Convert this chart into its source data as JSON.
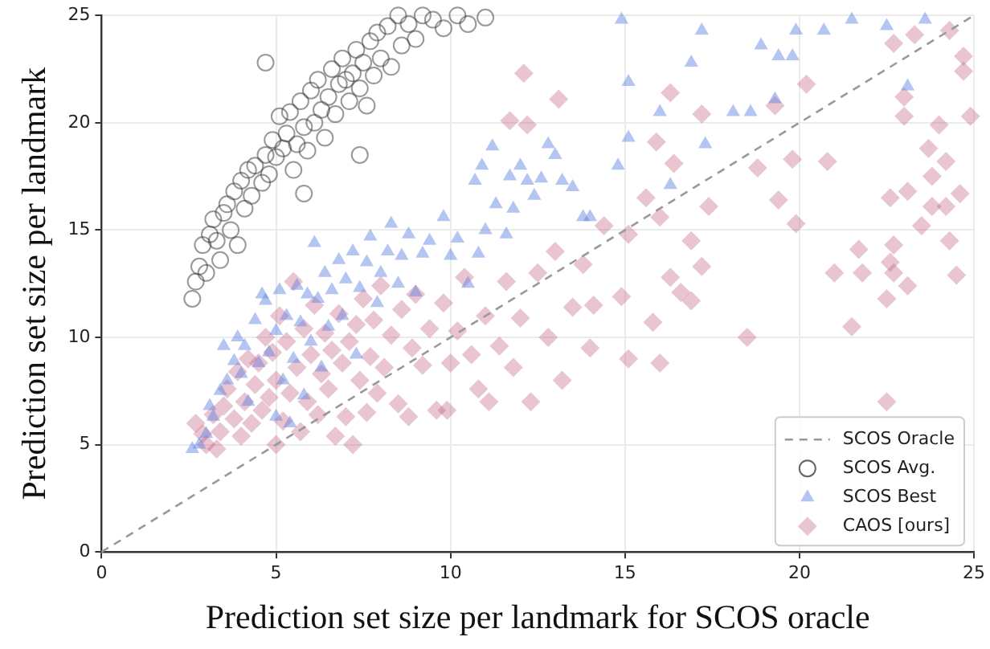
{
  "chart_data": {
    "type": "scatter",
    "xlabel": "Prediction set size per landmark for SCOS oracle",
    "ylabel": "Prediction set size per landmark",
    "xlim": [
      0,
      25
    ],
    "ylim": [
      0,
      25
    ],
    "xticks": [
      0,
      5,
      10,
      15,
      20,
      25
    ],
    "yticks": [
      0,
      5,
      10,
      15,
      20,
      25
    ],
    "grid": true,
    "legend": "bottom right",
    "series": [
      {
        "name": "SCOS Oracle",
        "type": "line",
        "color": "#999999",
        "line_style": "dashed",
        "marker": "none",
        "x": [
          0,
          25
        ],
        "values": [
          0,
          25
        ]
      },
      {
        "name": "SCOS Avg.",
        "color": "#333333",
        "marker": "circle",
        "x": [
          2.6,
          2.7,
          2.8,
          2.9,
          3.0,
          3.1,
          3.2,
          3.3,
          3.5,
          3.6,
          3.7,
          3.8,
          4.0,
          4.1,
          4.2,
          4.3,
          4.4,
          4.6,
          4.7,
          4.8,
          4.9,
          5.0,
          5.1,
          5.2,
          5.3,
          5.4,
          5.5,
          5.6,
          5.7,
          5.8,
          5.9,
          6.0,
          6.1,
          6.2,
          6.3,
          6.4,
          6.5,
          6.6,
          6.7,
          6.8,
          6.9,
          7.0,
          7.1,
          7.2,
          7.3,
          7.4,
          7.5,
          7.6,
          7.7,
          7.8,
          7.9,
          8.0,
          8.2,
          8.3,
          8.5,
          8.6,
          8.8,
          9.0,
          9.2,
          9.5,
          9.8,
          10.2,
          10.5,
          11.0,
          4.7,
          3.9,
          3.4,
          5.8,
          7.4
        ],
        "values": [
          11.8,
          12.6,
          13.3,
          14.3,
          13.0,
          14.8,
          15.5,
          14.5,
          15.8,
          16.2,
          15.0,
          16.8,
          17.3,
          16.0,
          17.8,
          16.6,
          18.0,
          17.2,
          18.5,
          17.6,
          19.2,
          18.4,
          20.3,
          18.8,
          19.5,
          20.5,
          17.8,
          19.0,
          21.0,
          19.8,
          18.7,
          21.5,
          20.0,
          22.0,
          20.6,
          19.3,
          21.2,
          22.5,
          20.4,
          21.8,
          23.0,
          22.0,
          21.0,
          22.3,
          23.4,
          21.6,
          22.8,
          20.8,
          23.8,
          22.2,
          24.2,
          23.0,
          24.5,
          22.6,
          25.0,
          23.6,
          24.6,
          23.9,
          25.0,
          24.8,
          24.4,
          25.0,
          24.6,
          24.9,
          22.8,
          14.3,
          13.6,
          16.7,
          18.5
        ]
      },
      {
        "name": "SCOS Best",
        "color": "#5a7ee0",
        "marker": "triangle",
        "x": [
          2.6,
          2.8,
          3.0,
          3.1,
          3.2,
          3.4,
          3.6,
          3.8,
          3.5,
          3.9,
          4.0,
          4.1,
          4.2,
          4.4,
          4.5,
          4.6,
          4.7,
          4.8,
          5.0,
          5.0,
          5.1,
          5.2,
          5.3,
          5.4,
          5.5,
          5.6,
          5.7,
          5.8,
          5.9,
          6.0,
          6.1,
          6.2,
          6.3,
          6.4,
          6.5,
          6.6,
          6.8,
          6.9,
          7.0,
          7.2,
          7.3,
          7.4,
          7.6,
          7.7,
          7.9,
          8.0,
          8.2,
          8.3,
          8.5,
          8.6,
          8.8,
          9.0,
          9.2,
          9.4,
          9.8,
          10.0,
          10.2,
          10.5,
          10.8,
          11.0,
          11.3,
          11.6,
          11.8,
          12.0,
          12.2,
          12.4,
          12.6,
          12.8,
          13.0,
          13.2,
          13.5,
          13.8,
          14.0,
          14.8,
          15.1,
          15.1,
          16.0,
          16.3,
          16.9,
          17.2,
          17.3,
          18.1,
          18.6,
          18.9,
          19.3,
          19.4,
          19.8,
          19.9,
          20.7,
          21.5,
          22.5,
          23.1,
          23.6,
          14.9,
          11.7,
          10.7,
          10.9,
          11.2
        ],
        "values": [
          4.8,
          5.0,
          5.5,
          6.8,
          6.3,
          7.5,
          8.0,
          8.9,
          9.6,
          10.0,
          8.3,
          9.6,
          7.0,
          10.8,
          8.8,
          12.0,
          11.7,
          9.3,
          6.3,
          10.3,
          12.2,
          8.0,
          11.0,
          6.0,
          9.0,
          12.4,
          10.7,
          7.3,
          12.0,
          9.8,
          14.4,
          11.8,
          8.6,
          13.0,
          10.5,
          12.2,
          13.6,
          11.0,
          12.7,
          14.0,
          9.2,
          12.3,
          13.5,
          14.7,
          11.6,
          13.0,
          14.0,
          15.3,
          12.5,
          13.8,
          14.8,
          12.1,
          13.9,
          14.5,
          15.6,
          13.8,
          14.6,
          12.5,
          13.9,
          15.0,
          16.2,
          14.8,
          16.0,
          18.0,
          17.3,
          16.6,
          17.4,
          19.0,
          18.5,
          17.3,
          17.0,
          15.6,
          15.6,
          18.0,
          19.3,
          21.9,
          20.5,
          17.1,
          22.8,
          24.3,
          19.0,
          20.5,
          20.5,
          23.6,
          21.1,
          23.1,
          23.1,
          24.3,
          24.3,
          24.8,
          24.5,
          21.7,
          24.8,
          24.8,
          17.5,
          17.3,
          18.0,
          18.9
        ]
      },
      {
        "name": "CAOS [ours]",
        "color": "#c0587e",
        "marker": "diamond",
        "x": [
          2.7,
          2.9,
          3.0,
          3.2,
          3.3,
          3.4,
          3.5,
          3.6,
          3.8,
          3.9,
          4.0,
          4.1,
          4.2,
          4.3,
          4.4,
          4.5,
          4.6,
          4.7,
          4.8,
          4.9,
          5.0,
          5.0,
          5.1,
          5.2,
          5.3,
          5.4,
          5.5,
          5.6,
          5.7,
          5.8,
          5.9,
          6.0,
          6.1,
          6.2,
          6.3,
          6.4,
          6.5,
          6.6,
          6.7,
          6.8,
          6.9,
          7.0,
          7.1,
          7.2,
          7.3,
          7.4,
          7.5,
          7.6,
          7.7,
          7.8,
          7.9,
          8.0,
          8.1,
          8.3,
          8.5,
          8.6,
          8.8,
          8.9,
          9.0,
          9.2,
          9.4,
          9.6,
          9.8,
          9.9,
          10.0,
          10.2,
          10.4,
          10.6,
          10.8,
          11.0,
          11.1,
          11.4,
          11.6,
          11.8,
          12.0,
          12.3,
          12.5,
          12.8,
          13.0,
          13.2,
          13.5,
          13.8,
          14.0,
          14.1,
          14.4,
          14.9,
          15.1,
          15.1,
          15.6,
          15.8,
          15.9,
          16.0,
          16.0,
          16.3,
          16.3,
          16.4,
          16.6,
          16.9,
          16.9,
          17.2,
          17.2,
          17.4,
          18.5,
          18.8,
          19.3,
          19.4,
          19.8,
          19.9,
          20.2,
          20.8,
          21.0,
          21.5,
          21.7,
          21.8,
          22.5,
          22.5,
          22.6,
          22.6,
          22.7,
          22.7,
          22.7,
          23.0,
          23.0,
          23.1,
          23.1,
          23.3,
          23.5,
          23.7,
          23.8,
          23.8,
          24.0,
          24.2,
          24.2,
          24.3,
          24.3,
          24.5,
          24.6,
          24.7,
          24.7,
          24.9,
          11.7,
          12.1,
          12.2,
          13.1
        ],
        "values": [
          6.0,
          5.5,
          5.0,
          6.4,
          4.8,
          5.6,
          6.8,
          7.6,
          6.2,
          8.4,
          5.4,
          7.0,
          9.0,
          6.0,
          7.8,
          8.8,
          6.6,
          10.0,
          7.2,
          9.3,
          5.0,
          8.0,
          11.0,
          6.1,
          9.8,
          7.4,
          12.6,
          8.6,
          5.6,
          10.4,
          7.0,
          9.2,
          11.5,
          6.4,
          8.3,
          10.2,
          7.6,
          9.4,
          5.4,
          11.1,
          8.8,
          6.3,
          9.8,
          5.0,
          10.6,
          8.0,
          11.8,
          6.5,
          9.1,
          10.8,
          7.4,
          12.4,
          8.6,
          10.1,
          6.9,
          11.3,
          6.3,
          9.5,
          12.0,
          8.7,
          10.4,
          6.6,
          11.6,
          6.6,
          8.8,
          10.3,
          12.8,
          9.2,
          7.6,
          11.0,
          7.0,
          9.6,
          12.6,
          8.6,
          10.9,
          7.0,
          13.0,
          10.0,
          14.0,
          8.0,
          11.4,
          13.4,
          9.5,
          11.5,
          15.2,
          11.9,
          9.0,
          14.8,
          16.5,
          10.7,
          19.1,
          8.8,
          15.6,
          12.8,
          21.4,
          18.1,
          12.1,
          11.7,
          14.5,
          13.3,
          20.4,
          16.1,
          10.0,
          17.9,
          20.8,
          16.4,
          18.3,
          15.3,
          21.8,
          18.2,
          13.0,
          10.5,
          14.1,
          13.0,
          7.0,
          11.8,
          13.5,
          16.5,
          13.0,
          14.3,
          23.7,
          20.3,
          21.2,
          12.4,
          16.8,
          24.1,
          15.2,
          18.8,
          16.1,
          17.5,
          19.9,
          16.1,
          18.2,
          14.5,
          24.3,
          12.9,
          16.7,
          22.4,
          23.1,
          20.3,
          20.1,
          22.3,
          19.9,
          21.1
        ]
      }
    ]
  }
}
